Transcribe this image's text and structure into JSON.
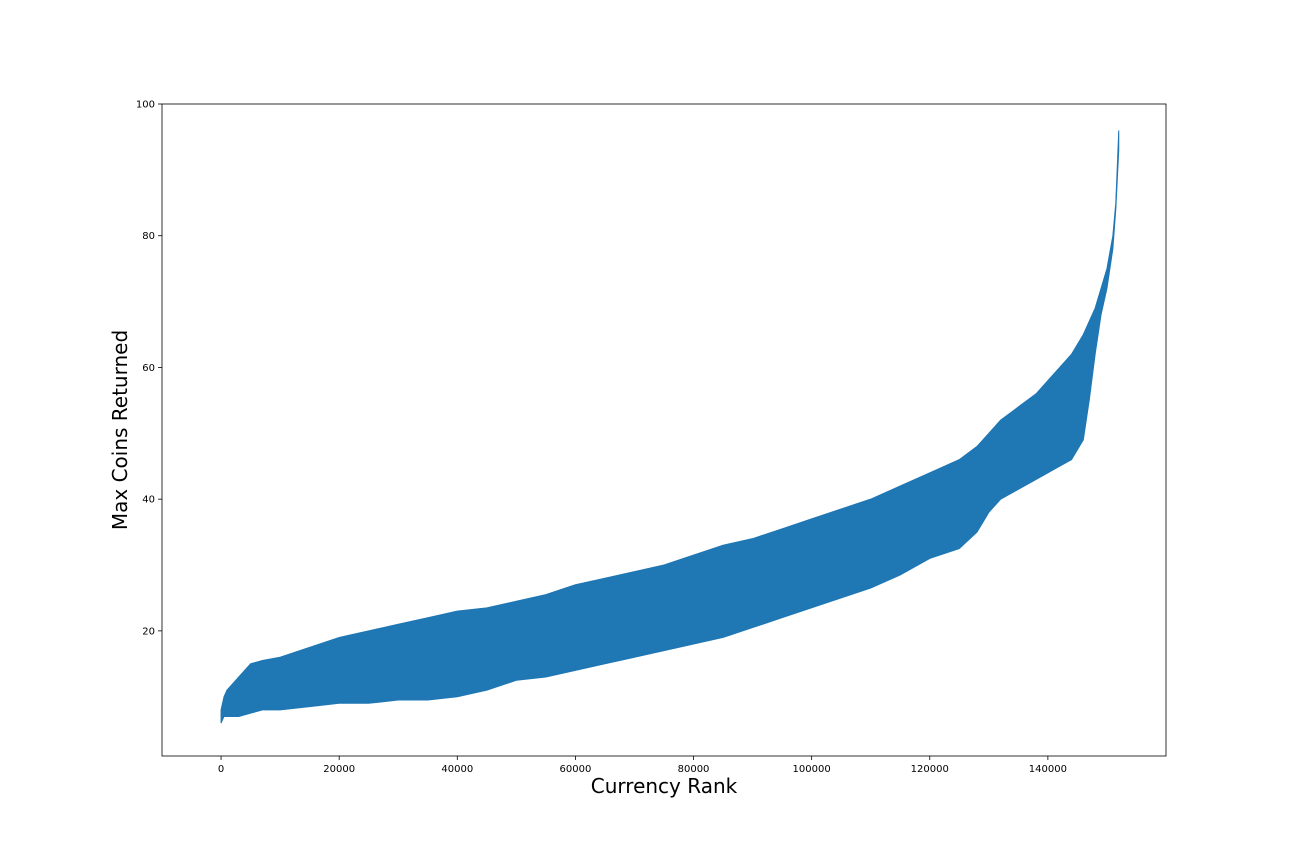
{
  "chart_data": {
    "type": "area",
    "xlabel": "Currency Rank",
    "ylabel": "Max Coins Returned",
    "xlim": [
      -10000,
      160000
    ],
    "ylim": [
      1,
      100
    ],
    "xticks": [
      0,
      20000,
      40000,
      60000,
      80000,
      100000,
      120000,
      140000
    ],
    "xtick_labels": [
      "0",
      "20000",
      "40000",
      "60000",
      "80000",
      "100000",
      "120000",
      "140000"
    ],
    "yticks": [
      20,
      40,
      60,
      80,
      100
    ],
    "ytick_labels": [
      "20",
      "40",
      "60",
      "80",
      "100"
    ],
    "grid": false,
    "series": [
      {
        "color": "#1f77b4",
        "x": [
          0,
          500,
          1000,
          2000,
          3000,
          5000,
          7000,
          10000,
          15000,
          20000,
          25000,
          30000,
          35000,
          40000,
          45000,
          50000,
          55000,
          60000,
          65000,
          70000,
          75000,
          80000,
          85000,
          90000,
          95000,
          100000,
          105000,
          110000,
          115000,
          120000,
          125000,
          128000,
          130000,
          132000,
          135000,
          138000,
          140000,
          142000,
          144000,
          145000,
          146000,
          147000,
          148000,
          149000,
          150000,
          151000,
          151500,
          152000
        ],
        "upper": [
          8,
          10,
          11,
          12,
          13,
          15,
          15.5,
          16,
          17.5,
          19,
          20,
          21,
          22,
          23,
          23.5,
          24.5,
          25.5,
          27,
          28,
          29,
          30,
          31.5,
          33,
          34,
          35.5,
          37,
          38.5,
          40,
          42,
          44,
          46,
          48,
          50,
          52,
          54,
          56,
          58,
          60,
          62,
          63.5,
          65,
          67,
          69,
          72,
          75,
          80,
          85,
          96
        ],
        "lower": [
          6,
          7,
          7,
          7,
          7,
          7.5,
          8,
          8,
          8.5,
          9,
          9,
          9.5,
          9.5,
          10,
          11,
          12.5,
          13,
          14,
          15,
          16,
          17,
          18,
          19,
          20.5,
          22,
          23.5,
          25,
          26.5,
          28.5,
          31,
          32.5,
          35,
          38,
          40,
          41.5,
          43,
          44,
          45,
          46,
          47.5,
          49,
          55,
          62,
          68,
          72,
          78,
          84,
          93
        ]
      }
    ]
  }
}
